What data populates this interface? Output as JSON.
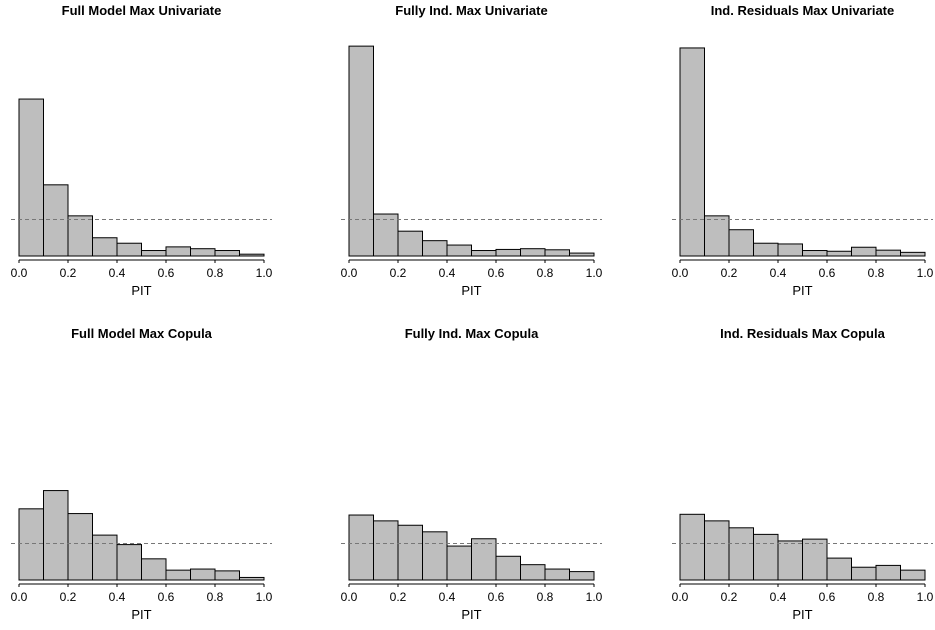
{
  "colors": {
    "bar_fill": "#bebebe",
    "bar_stroke": "#000000",
    "reference_line": "#777777"
  },
  "chart_data": [
    {
      "type": "bar",
      "title": "Full Model Max Univariate",
      "xlabel": "PIT",
      "bin_edges": [
        0,
        0.1,
        0.2,
        0.3,
        0.4,
        0.5,
        0.6,
        0.7,
        0.8,
        0.9,
        1.0
      ],
      "values": [
        4.3,
        1.95,
        1.1,
        0.5,
        0.35,
        0.15,
        0.25,
        0.2,
        0.15,
        0.05
      ],
      "reference_line": 1.0,
      "xlim": [
        0,
        1
      ],
      "ylim": [
        0,
        5.6
      ],
      "ticks": [
        "0.0",
        "0.2",
        "0.4",
        "0.6",
        "0.8",
        "1.0"
      ]
    },
    {
      "type": "bar",
      "title": "Fully Ind. Max Univariate",
      "xlabel": "PIT",
      "bin_edges": [
        0,
        0.1,
        0.2,
        0.3,
        0.4,
        0.5,
        0.6,
        0.7,
        0.8,
        0.9,
        1.0
      ],
      "values": [
        5.75,
        1.15,
        0.68,
        0.42,
        0.3,
        0.15,
        0.18,
        0.2,
        0.17,
        0.08
      ],
      "reference_line": 1.0,
      "xlim": [
        0,
        1
      ],
      "ylim": [
        0,
        5.6
      ],
      "ticks": [
        "0.0",
        "0.2",
        "0.4",
        "0.6",
        "0.8",
        "1.0"
      ]
    },
    {
      "type": "bar",
      "title": "Ind. Residuals Max Univariate",
      "xlabel": "PIT",
      "bin_edges": [
        0,
        0.1,
        0.2,
        0.3,
        0.4,
        0.5,
        0.6,
        0.7,
        0.8,
        0.9,
        1.0
      ],
      "values": [
        5.7,
        1.1,
        0.72,
        0.35,
        0.33,
        0.15,
        0.13,
        0.24,
        0.16,
        0.1
      ],
      "reference_line": 1.0,
      "xlim": [
        0,
        1
      ],
      "ylim": [
        0,
        5.6
      ],
      "ticks": [
        "0.0",
        "0.2",
        "0.4",
        "0.6",
        "0.8",
        "1.0"
      ]
    },
    {
      "type": "bar",
      "title": "Full Model Max Copula",
      "xlabel": "PIT",
      "bin_edges": [
        0,
        0.1,
        0.2,
        0.3,
        0.4,
        0.5,
        0.6,
        0.7,
        0.8,
        0.9,
        1.0
      ],
      "values": [
        1.95,
        2.45,
        1.82,
        1.23,
        0.97,
        0.58,
        0.27,
        0.3,
        0.25,
        0.07
      ],
      "reference_line": 1.0,
      "xlim": [
        0,
        1
      ],
      "ylim": [
        0,
        5.6
      ],
      "ticks": [
        "0.0",
        "0.2",
        "0.4",
        "0.6",
        "0.8",
        "1.0"
      ]
    },
    {
      "type": "bar",
      "title": "Fully Ind. Max Copula",
      "xlabel": "PIT",
      "bin_edges": [
        0,
        0.1,
        0.2,
        0.3,
        0.4,
        0.5,
        0.6,
        0.7,
        0.8,
        0.9,
        1.0
      ],
      "values": [
        1.78,
        1.62,
        1.5,
        1.32,
        0.93,
        1.13,
        0.65,
        0.42,
        0.3,
        0.23
      ],
      "reference_line": 1.0,
      "xlim": [
        0,
        1
      ],
      "ylim": [
        0,
        5.6
      ],
      "ticks": [
        "0.0",
        "0.2",
        "0.4",
        "0.6",
        "0.8",
        "1.0"
      ]
    },
    {
      "type": "bar",
      "title": "Ind. Residuals Max Copula",
      "xlabel": "PIT",
      "bin_edges": [
        0,
        0.1,
        0.2,
        0.3,
        0.4,
        0.5,
        0.6,
        0.7,
        0.8,
        0.9,
        1.0
      ],
      "values": [
        1.8,
        1.62,
        1.43,
        1.25,
        1.07,
        1.12,
        0.6,
        0.35,
        0.4,
        0.27
      ],
      "reference_line": 1.0,
      "xlim": [
        0,
        1
      ],
      "ylim": [
        0,
        5.6
      ],
      "ticks": [
        "0.0",
        "0.2",
        "0.4",
        "0.6",
        "0.8",
        "1.0"
      ]
    }
  ]
}
